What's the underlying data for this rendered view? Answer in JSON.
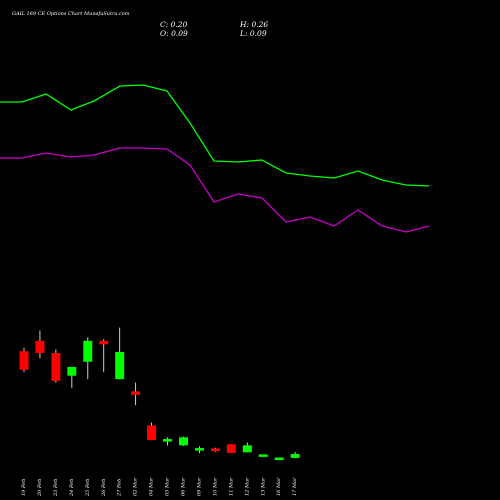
{
  "header": {
    "title": "GAIL 169 CE Options  Chart MunafaSutra.com",
    "close_label": "C:",
    "close_value": "0.20",
    "open_label": "O:",
    "open_value": "0.09",
    "high_label": "H:",
    "high_value": "0.26",
    "low_label": "L:",
    "low_value": "0.09"
  },
  "colors": {
    "background": "#000000",
    "upper_line": "#00ff00",
    "lower_line": "#cc00cc",
    "up_candle": "#00ff00",
    "down_candle": "#ff0000",
    "wick": "#ffffff",
    "text": "#ffffff"
  },
  "chart_data": {
    "type": "candlestick",
    "ylim": [
      0,
      6
    ],
    "x": [
      "19 Feb",
      "20 Feb",
      "23 Feb",
      "24 Feb",
      "25 Feb",
      "26 Feb",
      "27 Feb",
      "02 Mar",
      "04 Mar",
      "05 Mar",
      "06 Mar",
      "09 Mar",
      "10 Mar",
      "11 Mar",
      "12 Mar",
      "13 Mar",
      "16 Mar",
      "17 Mar"
    ],
    "x_labels": [
      "19 Feb",
      "20 Feb",
      "23 Feb",
      "24 Feb",
      "25 Feb",
      "26 Feb",
      "27 Feb",
      "02 Mar",
      "04 Mar",
      "05 Mar",
      "06 Mar",
      "09 Mar",
      "10 Mar",
      "11 Mar",
      "12 Mar",
      "13 Mar",
      "16 Mar",
      "17 Mar"
    ],
    "candles": [
      {
        "open": 3.15,
        "high": 3.25,
        "low": 2.55,
        "close": 2.62,
        "dir": "down"
      },
      {
        "open": 3.45,
        "high": 3.75,
        "low": 2.95,
        "close": 3.1,
        "dir": "down"
      },
      {
        "open": 3.1,
        "high": 3.2,
        "low": 2.25,
        "close": 2.3,
        "dir": "down"
      },
      {
        "open": 2.45,
        "high": 2.65,
        "low": 2.1,
        "close": 2.7,
        "dir": "up"
      },
      {
        "open": 2.85,
        "high": 3.55,
        "low": 2.35,
        "close": 3.45,
        "dir": "up"
      },
      {
        "open": 3.45,
        "high": 3.5,
        "low": 2.55,
        "close": 3.35,
        "dir": "down"
      },
      {
        "open": 2.35,
        "high": 3.83,
        "low": 2.35,
        "close": 3.13,
        "dir": "up"
      },
      {
        "open": 2.0,
        "high": 2.25,
        "low": 1.6,
        "close": 1.9,
        "dir": "down"
      },
      {
        "open": 1.02,
        "high": 1.1,
        "low": 0.6,
        "close": 0.6,
        "dir": "down"
      },
      {
        "open": 0.58,
        "high": 0.68,
        "low": 0.45,
        "close": 0.63,
        "dir": "up"
      },
      {
        "open": 0.45,
        "high": 0.7,
        "low": 0.43,
        "close": 0.68,
        "dir": "up"
      },
      {
        "open": 0.32,
        "high": 0.42,
        "low": 0.23,
        "close": 0.37,
        "dir": "up"
      },
      {
        "open": 0.36,
        "high": 0.38,
        "low": 0.27,
        "close": 0.3,
        "dir": "down"
      },
      {
        "open": 0.48,
        "high": 0.48,
        "low": 0.23,
        "close": 0.23,
        "dir": "down"
      },
      {
        "open": 0.25,
        "high": 0.53,
        "low": 0.25,
        "close": 0.45,
        "dir": "up"
      },
      {
        "open": 0.18,
        "high": 0.19,
        "low": 0.17,
        "close": 0.19,
        "dir": "up"
      },
      {
        "open": 0.09,
        "high": 0.1,
        "low": 0.08,
        "close": 0.1,
        "dir": "up"
      },
      {
        "open": 0.09,
        "high": 0.26,
        "low": 0.09,
        "close": 0.2,
        "dir": "up"
      }
    ],
    "lines": [
      {
        "color": "#00ff00",
        "points": [
          [
            0,
            102
          ],
          [
            22,
            102
          ],
          [
            46,
            94
          ],
          [
            71,
            110
          ],
          [
            94,
            101
          ],
          [
            120,
            86
          ],
          [
            143,
            85
          ],
          [
            167,
            91
          ],
          [
            190,
            123
          ],
          [
            214,
            161
          ],
          [
            238,
            162
          ],
          [
            262,
            160
          ],
          [
            286,
            173
          ],
          [
            310,
            176
          ],
          [
            334,
            178
          ],
          [
            358,
            171
          ],
          [
            382,
            180
          ],
          [
            406,
            185
          ],
          [
            429,
            186
          ]
        ]
      },
      {
        "color": "#cc00cc",
        "points": [
          [
            0,
            158
          ],
          [
            22,
            158
          ],
          [
            46,
            153
          ],
          [
            71,
            157
          ],
          [
            94,
            155
          ],
          [
            120,
            148
          ],
          [
            143,
            148
          ],
          [
            167,
            149
          ],
          [
            190,
            165
          ],
          [
            214,
            202
          ],
          [
            238,
            194
          ],
          [
            262,
            198
          ],
          [
            286,
            222
          ],
          [
            310,
            217
          ],
          [
            334,
            226
          ],
          [
            358,
            210
          ],
          [
            382,
            226
          ],
          [
            406,
            232
          ],
          [
            429,
            226
          ]
        ]
      }
    ]
  }
}
